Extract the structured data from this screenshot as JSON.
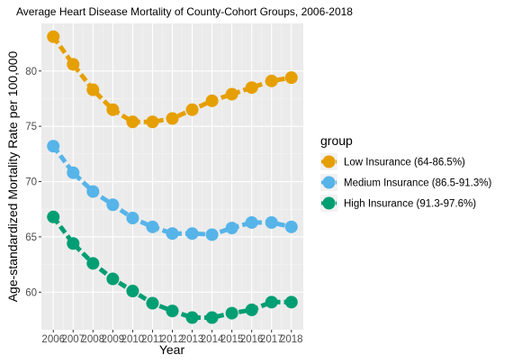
{
  "chart_data": {
    "type": "line",
    "title": "Average Heart Disease Mortality of County-Cohort Groups, 2006-2018",
    "xlabel": "Year",
    "ylabel": "Age-standardized Mortality Rate per 100,000",
    "x": [
      2006,
      2007,
      2008,
      2009,
      2010,
      2011,
      2012,
      2013,
      2014,
      2015,
      2016,
      2017,
      2018
    ],
    "x_tick_labels": [
      "2006",
      "2007",
      "2008",
      "2009",
      "2010",
      "2011",
      "2012",
      "2013",
      "2014",
      "2015",
      "2016",
      "2017",
      "2018"
    ],
    "y_ticks": [
      60,
      65,
      70,
      75,
      80
    ],
    "xlim": [
      2005.4,
      2018.6
    ],
    "ylim": [
      56.6,
      84.3
    ],
    "grid": true,
    "legend": {
      "title": "group",
      "position": "right"
    },
    "series": [
      {
        "name": "Low Insurance (64-86.5%)",
        "color": "#E69F00",
        "values": [
          83.1,
          80.6,
          78.3,
          76.5,
          75.4,
          75.4,
          75.7,
          76.5,
          77.3,
          77.9,
          78.5,
          79.1,
          79.4
        ]
      },
      {
        "name": "Medium Insurance (86.5-91.3%)",
        "color": "#56B4E9",
        "values": [
          73.2,
          70.8,
          69.1,
          67.9,
          66.7,
          65.9,
          65.3,
          65.3,
          65.2,
          65.8,
          66.3,
          66.3,
          65.9
        ]
      },
      {
        "name": "High Insurance (91.3-97.6%)",
        "color": "#009E73",
        "values": [
          66.8,
          64.4,
          62.6,
          61.2,
          60.1,
          59.0,
          58.3,
          57.7,
          57.7,
          58.1,
          58.4,
          59.1,
          59.1
        ]
      }
    ]
  }
}
